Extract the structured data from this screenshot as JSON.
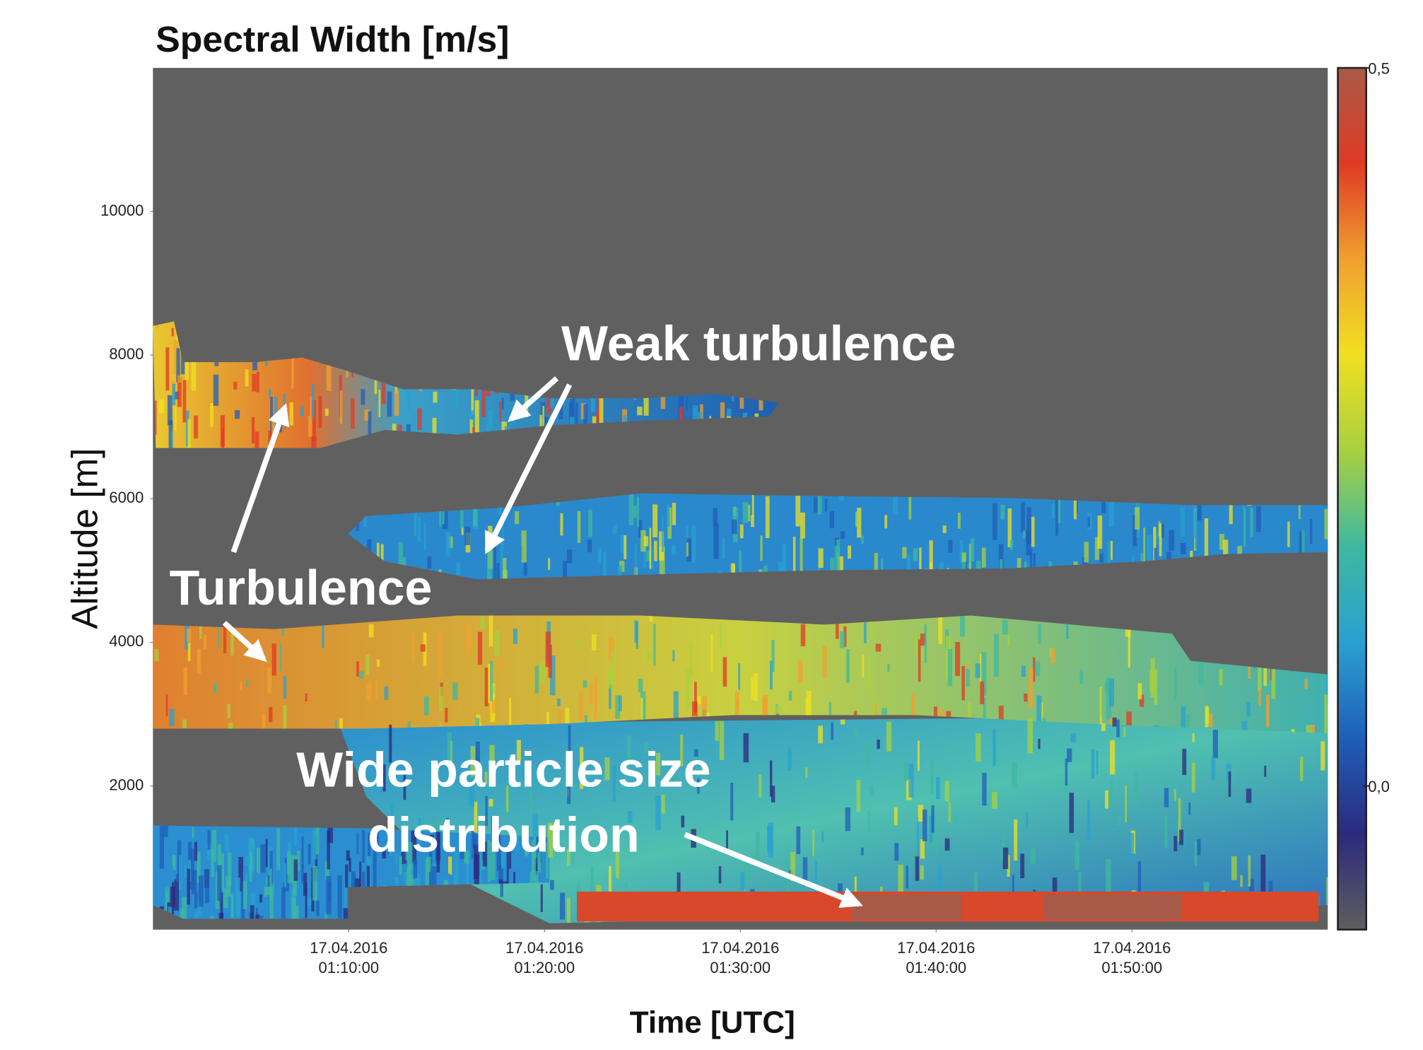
{
  "chart_data": {
    "type": "heatmap",
    "title": "Spectral Width [m/s]",
    "xlabel": "Time [UTC]",
    "ylabel": "Altitude [m]",
    "xlim": [
      "2016-04-17T01:00:00",
      "2016-04-17T02:00:00"
    ],
    "xticks": [
      {
        "value": "2016-04-17T01:10:00",
        "label": "17.04.2016 01:10:00"
      },
      {
        "value": "2016-04-17T01:20:00",
        "label": "17.04.2016 01:20:00"
      },
      {
        "value": "2016-04-17T01:30:00",
        "label": "17.04.2016 01:30:00"
      },
      {
        "value": "2016-04-17T01:40:00",
        "label": "17.04.2016 01:40:00"
      },
      {
        "value": "2016-04-17T01:50:00",
        "label": "17.04.2016 01:50:00"
      }
    ],
    "ylim": [
      0,
      12000
    ],
    "yticks": [
      2000,
      4000,
      6000,
      8000,
      10000
    ],
    "zlim": [
      -0.1,
      0.5
    ],
    "zticks": [
      {
        "value": 0,
        "label": "0,0"
      },
      {
        "value": 0.5,
        "label": "0,5"
      }
    ],
    "colormap": [
      "#5e5e5e",
      "#2b2a7e",
      "#1f5fb8",
      "#2aa0d0",
      "#3fb8a0",
      "#a8d040",
      "#f0e020",
      "#f0a030",
      "#e03a25",
      "#a85a48"
    ],
    "annotations": [
      "Weak turbulence",
      "Turbulence",
      "Wide particle size distribution"
    ]
  }
}
